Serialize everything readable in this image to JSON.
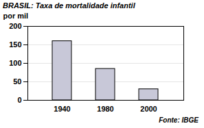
{
  "chart_data": {
    "type": "bar",
    "title": "BRASIL: Taxa de mortalidade infantil",
    "y_label": "por mil",
    "caption": "Fonte: IBGE",
    "categories": [
      "1940",
      "1980",
      "2000"
    ],
    "values": [
      160,
      85,
      30
    ],
    "color": "#c8c8d8",
    "ylim": [
      0,
      200
    ],
    "yticks": [
      0,
      50,
      100,
      150,
      200
    ],
    "grid": true
  }
}
